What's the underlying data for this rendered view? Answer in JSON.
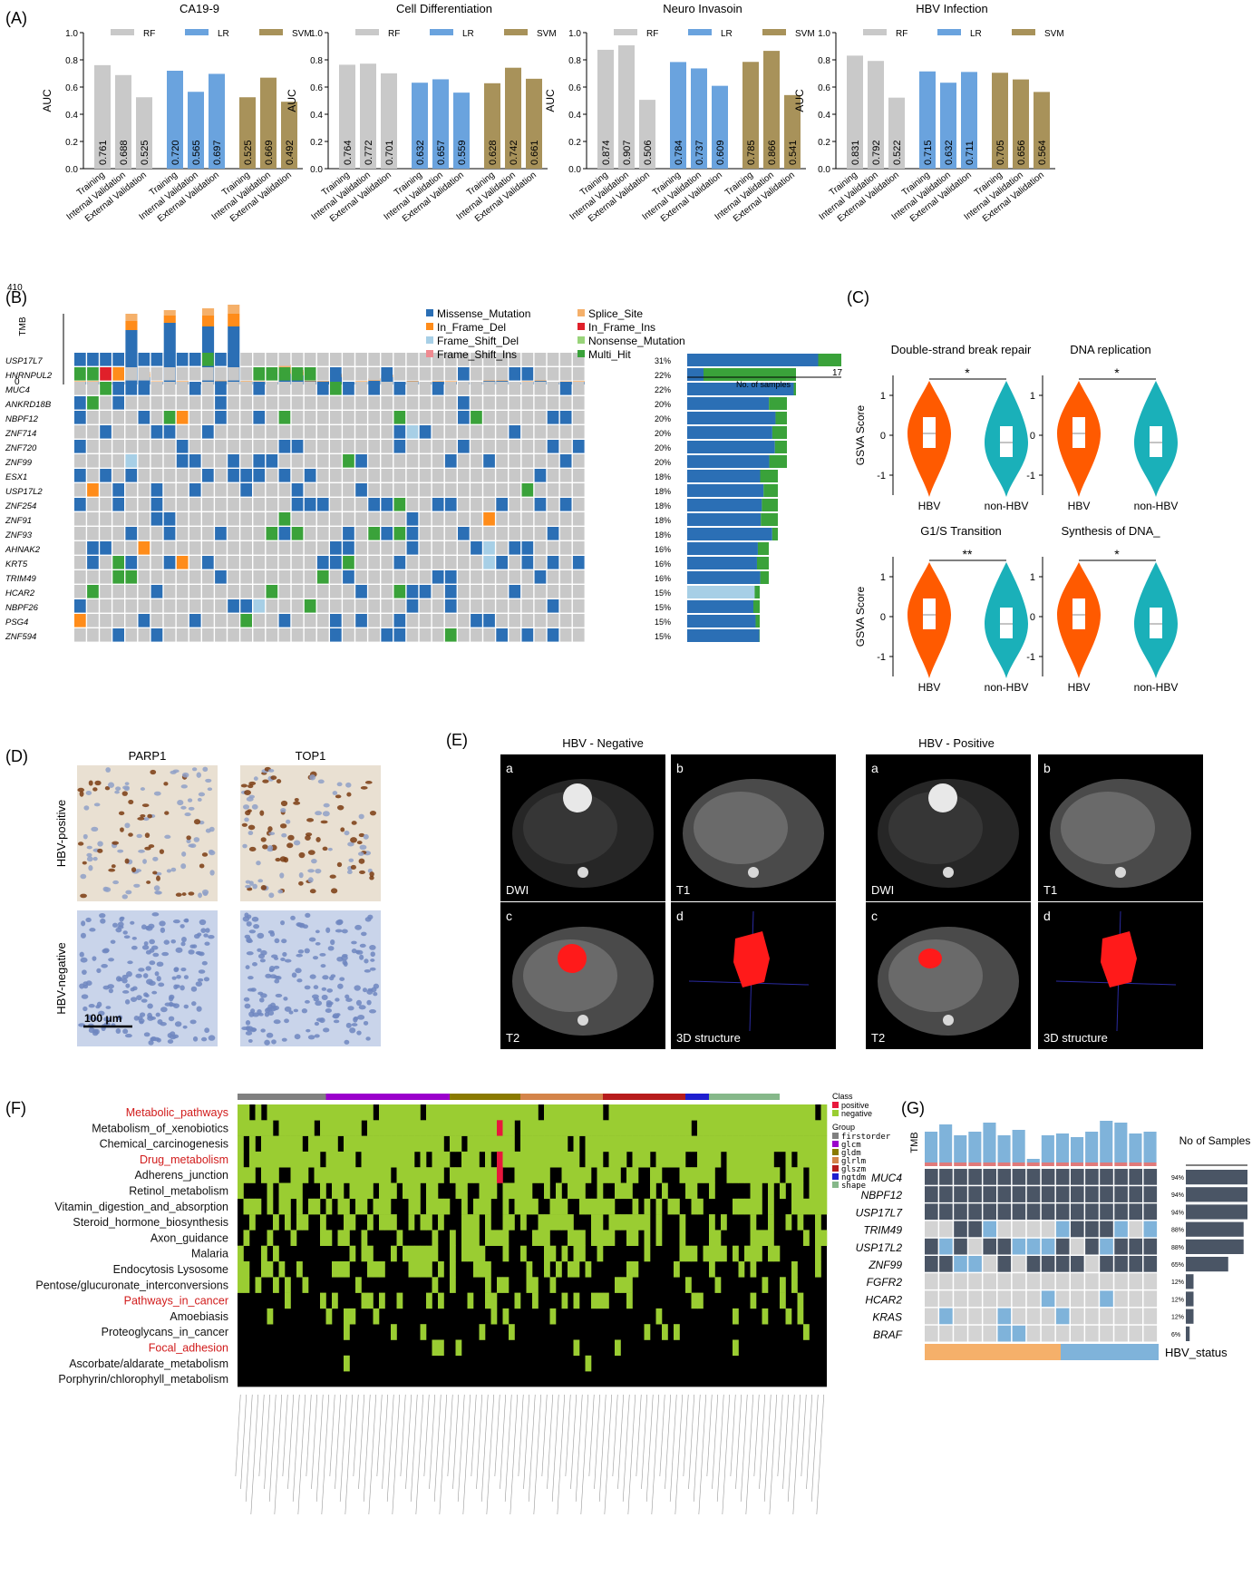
{
  "panel_labels": {
    "A": "(A)",
    "B": "(B)",
    "C": "(C)",
    "D": "(D)",
    "E": "(E)",
    "F": "(F)",
    "G": "(G)"
  },
  "colors": {
    "RF": "#c9c9c9",
    "LR": "#6aa3de",
    "SVM": "#a8925a",
    "onco_blue": "#2b6fb5",
    "onco_green": "#3aa23a",
    "onco_orange": "#ff8c1a",
    "onco_red": "#e0202a",
    "onco_lblue": "#a7cfe6",
    "bg_gray": "#c8c8c8",
    "hbv": "#ff5a00",
    "nonhbv": "#1ab0b9",
    "heat_green": "#9acd32",
    "heat_red": "#e8173c",
    "g_dark": "#4a5565",
    "g_light": "#7fb3da",
    "g_orange": "#f5b06a"
  },
  "chart_data": [
    {
      "type": "bar",
      "title": "CA19-9",
      "ylabel": "AUC",
      "ylim": [
        0,
        1.0
      ],
      "yticks": [
        "0.0",
        "0.2",
        "0.4",
        "0.6",
        "0.8",
        "1.0"
      ],
      "legend": [
        "RF",
        "LR",
        "SVM"
      ],
      "categories": [
        "Training",
        "Internal Validation",
        "External Validation"
      ],
      "series": [
        {
          "name": "RF",
          "values": [
            0.761,
            0.688,
            0.525
          ]
        },
        {
          "name": "LR",
          "values": [
            0.72,
            0.565,
            0.697
          ]
        },
        {
          "name": "SVM",
          "values": [
            0.525,
            0.669,
            0.492
          ]
        }
      ],
      "labels": [
        [
          "0.761",
          "0.688",
          "0.525"
        ],
        [
          "0.720",
          "0.565",
          "0.697"
        ],
        [
          "0.525",
          "0.669",
          "0.492"
        ]
      ]
    },
    {
      "type": "bar",
      "title": "Cell Differentiation",
      "ylabel": "AUC",
      "ylim": [
        0,
        1.0
      ],
      "yticks": [
        "0.0",
        "0.2",
        "0.4",
        "0.6",
        "0.8",
        "1.0"
      ],
      "legend": [
        "RF",
        "LR",
        "SVM"
      ],
      "categories": [
        "Training",
        "Internal Validation",
        "External Validation"
      ],
      "series": [
        {
          "name": "RF",
          "values": [
            0.764,
            0.772,
            0.701
          ]
        },
        {
          "name": "LR",
          "values": [
            0.632,
            0.657,
            0.559
          ]
        },
        {
          "name": "SVM",
          "values": [
            0.628,
            0.742,
            0.661
          ]
        }
      ],
      "labels": [
        [
          "0.764",
          "0.772",
          "0.701"
        ],
        [
          "0.632",
          "0.657",
          "0.559"
        ],
        [
          "0.628",
          "0.742",
          "0.661"
        ]
      ]
    },
    {
      "type": "bar",
      "title": "Neuro Invasoin",
      "ylabel": "AUC",
      "ylim": [
        0,
        1.0
      ],
      "yticks": [
        "0.0",
        "0.2",
        "0.4",
        "0.6",
        "0.8",
        "1.0"
      ],
      "legend": [
        "RF",
        "LR",
        "SVM"
      ],
      "categories": [
        "Training",
        "Internal Validation",
        "External Validation"
      ],
      "series": [
        {
          "name": "RF",
          "values": [
            0.874,
            0.907,
            0.506
          ]
        },
        {
          "name": "LR",
          "values": [
            0.784,
            0.737,
            0.609
          ]
        },
        {
          "name": "SVM",
          "values": [
            0.785,
            0.866,
            0.541
          ]
        }
      ],
      "labels": [
        [
          "0.874",
          "0.907",
          "0.506"
        ],
        [
          "0.784",
          "0.737",
          "0.609"
        ],
        [
          "0.785",
          "0.866",
          "0.541"
        ]
      ]
    },
    {
      "type": "bar",
      "title": "HBV Infection",
      "ylabel": "AUC",
      "ylim": [
        0,
        1.0
      ],
      "yticks": [
        "0.0",
        "0.2",
        "0.4",
        "0.6",
        "0.8",
        "1.0"
      ],
      "legend": [
        "RF",
        "LR",
        "SVM"
      ],
      "categories": [
        "Training",
        "Internal Validation",
        "External Validation"
      ],
      "series": [
        {
          "name": "RF",
          "values": [
            0.831,
            0.792,
            0.522
          ]
        },
        {
          "name": "LR",
          "values": [
            0.715,
            0.632,
            0.711
          ]
        },
        {
          "name": "SVM",
          "values": [
            0.705,
            0.656,
            0.564
          ]
        }
      ],
      "labels": [
        [
          "0.831",
          "0.792",
          "0.522"
        ],
        [
          "0.715",
          "0.632",
          "0.711"
        ],
        [
          "0.705",
          "0.656",
          "0.564"
        ]
      ]
    }
  ],
  "panelB": {
    "tmb_label": "TMB",
    "tmb_max": "410",
    "tmb_min": "0",
    "legend": [
      "Missense_Mutation",
      "Splice_Site",
      "In_Frame_Del",
      "In_Frame_Ins",
      "Frame_Shift_Del",
      "Nonsense_Mutation",
      "Frame_Shift_Ins",
      "Multi_Hit"
    ],
    "legend_colors": [
      "#2b6fb5",
      "#f5b06a",
      "#ff8c1a",
      "#e0202a",
      "#a7cfe6",
      "#99d47a",
      "#f08a90",
      "#3aa23a"
    ],
    "samples_label": "No. of samples",
    "samples_max": "17",
    "genes": [
      "USP17L7",
      "HNRNPUL2",
      "MUC4",
      "ANKRD18B",
      "NBPF12",
      "ZNF714",
      "ZNF720",
      "ZNF99",
      "ESX1",
      "USP17L2",
      "ZNF254",
      "ZNF91",
      "ZNF93",
      "AHNAK2",
      "KRT5",
      "TRIM49",
      "HCAR2",
      "NBPF26",
      "PSG4",
      "ZNF594"
    ],
    "pcts": [
      "31%",
      "22%",
      "22%",
      "20%",
      "20%",
      "20%",
      "20%",
      "20%",
      "18%",
      "18%",
      "18%",
      "18%",
      "18%",
      "16%",
      "16%",
      "16%",
      "15%",
      "15%",
      "15%",
      "15%"
    ],
    "counts": [
      17,
      12,
      12,
      11,
      11,
      11,
      11,
      11,
      10,
      10,
      10,
      10,
      10,
      9,
      9,
      9,
      8,
      8,
      8,
      8
    ]
  },
  "panelC": {
    "ylabel": "GSVA Score",
    "groups": [
      "HBV",
      "non-HBV"
    ],
    "plots": [
      {
        "title": "Double-strand break repair",
        "sig": "*",
        "yticks": [
          "1",
          "0",
          "-1"
        ]
      },
      {
        "title": "DNA replication",
        "sig": "*",
        "yticks": [
          "1",
          "0",
          "-1"
        ]
      },
      {
        "title": "G1/S Transition",
        "sig": "**",
        "yticks": [
          "1",
          "0",
          "-1"
        ]
      },
      {
        "title": "Synthesis of DNA_",
        "sig": "*",
        "yticks": [
          "1",
          "0",
          "-1"
        ]
      }
    ]
  },
  "panelD": {
    "cols": [
      "PARP1",
      "TOP1"
    ],
    "rows": [
      "HBV-positive",
      "HBV-negative"
    ],
    "scale": "100 μm"
  },
  "panelE": {
    "groups": [
      "HBV - Negative",
      "HBV - Positive"
    ],
    "letters": [
      "a",
      "b",
      "c",
      "d"
    ],
    "captions": [
      "DWI",
      "T1",
      "T2",
      "3D structure"
    ]
  },
  "panelF": {
    "pathways": [
      "Metabolic_pathways",
      "Metabolism_of_xenobiotics",
      "Chemical_carcinogenesis",
      "Drug_metabolism",
      "Adherens_junction",
      "Retinol_metabolism",
      "Vitamin_digestion_and_absorption",
      "Steroid_hormone_biosynthesis",
      "Axon_guidance",
      "Malaria",
      "Endocytosis Lysosome",
      "Pentose/glucuronate_interconversions",
      "Pathways_in_cancer",
      "Amoebiasis",
      "Proteoglycans_in_cancer",
      "Focal_adhesion",
      "Ascorbate/aldarate_metabolism",
      "Porphyrin/chlorophyll_metabolism"
    ],
    "highlighted": [
      "Metabolic_pathways",
      "Drug_metabolism",
      "Pathways_in_cancer",
      "Focal_adhesion"
    ],
    "legend_class_title": "Class",
    "legend_class": [
      "positive",
      "negative"
    ],
    "legend_group_title": "Group",
    "legend_group": [
      "firstorder",
      "glcm",
      "gldm",
      "glrlm",
      "glszm",
      "ngtdm",
      "shape"
    ],
    "group_colors": [
      "#808080",
      "#9b00cc",
      "#8a7a00",
      "#d4844a",
      "#b71c1c",
      "#1f1fcf",
      "#86b88a"
    ]
  },
  "panelG": {
    "tmb_label": "TMB",
    "samples_label": "No of Samples",
    "genes": [
      "MUC4",
      "NBPF12",
      "USP17L7",
      "TRIM49",
      "USP17L2",
      "ZNF99",
      "FGFR2",
      "HCAR2",
      "KRAS",
      "BRAF"
    ],
    "pcts": [
      "94%",
      "94%",
      "94%",
      "88%",
      "88%",
      "65%",
      "12%",
      "12%",
      "12%",
      "6%"
    ],
    "counts": [
      16,
      16,
      16,
      15,
      15,
      11,
      2,
      2,
      2,
      1
    ],
    "status_label": "HBV_status"
  }
}
